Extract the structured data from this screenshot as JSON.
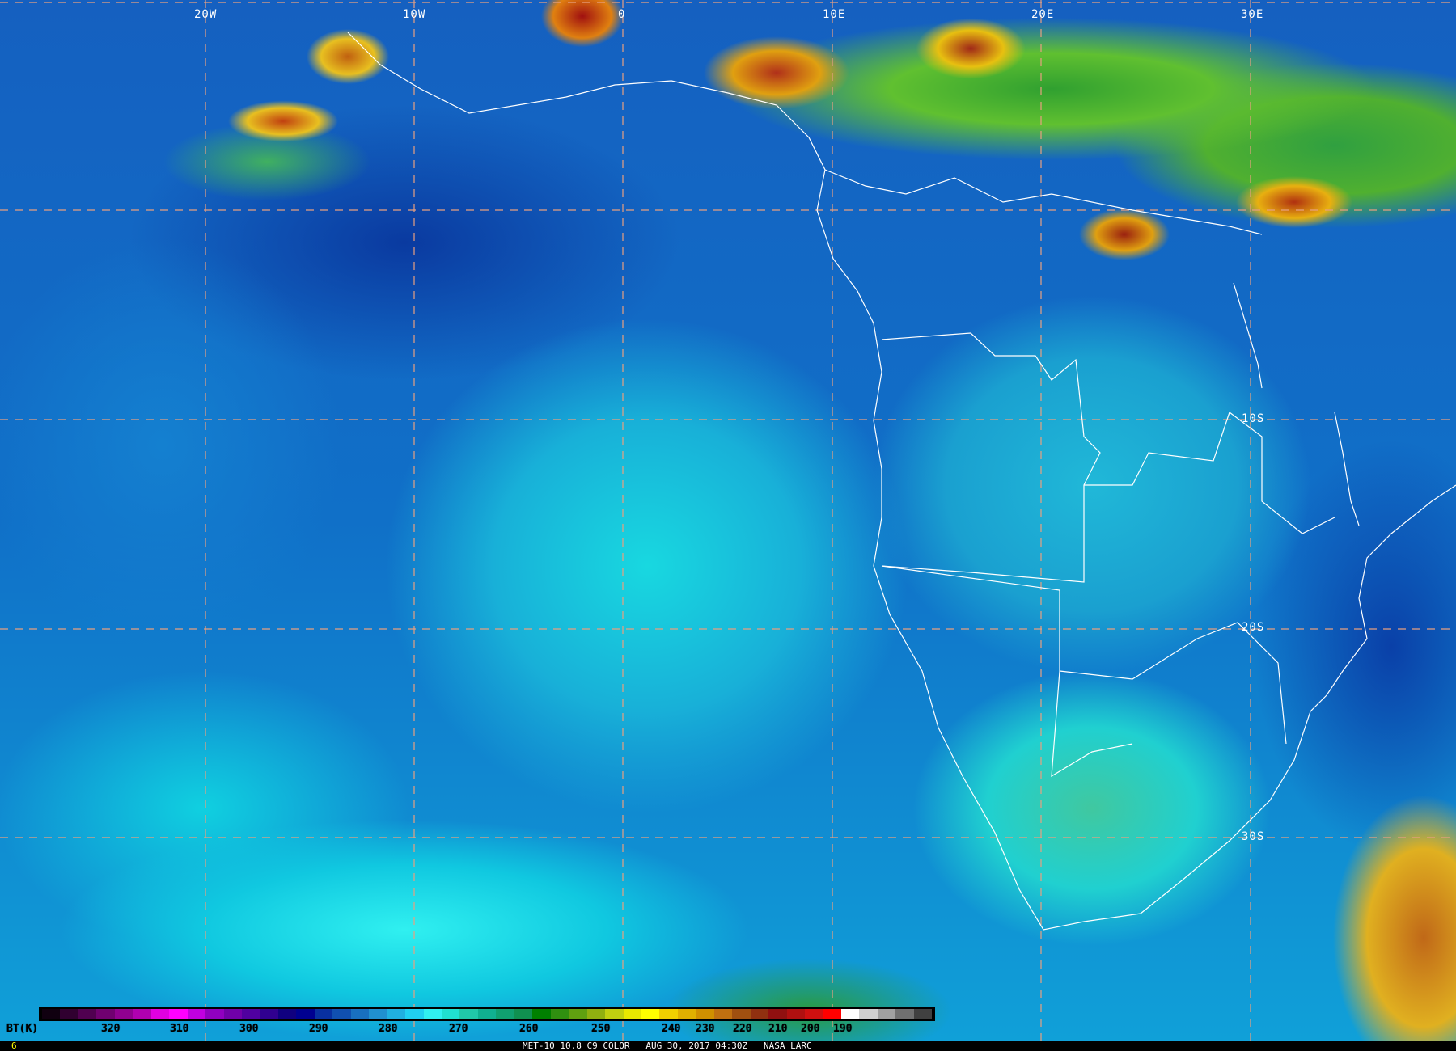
{
  "map": {
    "lon_labels": [
      "20W",
      "10W",
      "0",
      "10E",
      "20E",
      "30E"
    ],
    "lat_labels": [
      "10S",
      "20S",
      "30S"
    ]
  },
  "colorbar": {
    "unit_label": "BT(K)",
    "ticks": [
      "320",
      "310",
      "300",
      "290",
      "280",
      "270",
      "260",
      "250",
      "240",
      "230",
      "220",
      "210",
      "200",
      "190"
    ],
    "colors": [
      "#100010",
      "#300030",
      "#500050",
      "#700070",
      "#900090",
      "#b000b0",
      "#e000e0",
      "#ff00ff",
      "#c000e0",
      "#9000c0",
      "#7000a8",
      "#5000a0",
      "#300090",
      "#100080",
      "#000090",
      "#0830a0",
      "#1050b0",
      "#1870c0",
      "#2090d0",
      "#20b0e0",
      "#20d0f0",
      "#30f0f0",
      "#20e0d0",
      "#20c8a8",
      "#10b090",
      "#10a070",
      "#109050",
      "#008000",
      "#309010",
      "#60a010",
      "#90b010",
      "#c0d010",
      "#e8e800",
      "#ffff00",
      "#f0d000",
      "#e0b000",
      "#d09000",
      "#c07010",
      "#a05010",
      "#903010",
      "#901010",
      "#b01010",
      "#d01010",
      "#ff0000",
      "#ffffff",
      "#d0d0d0",
      "#a0a0a0",
      "#707070",
      "#404040"
    ]
  },
  "footer": {
    "frame": "6",
    "caption": "MET-10 10.8 C9 COLOR   AUG 30, 2017 04:30Z   NASA LARC"
  }
}
